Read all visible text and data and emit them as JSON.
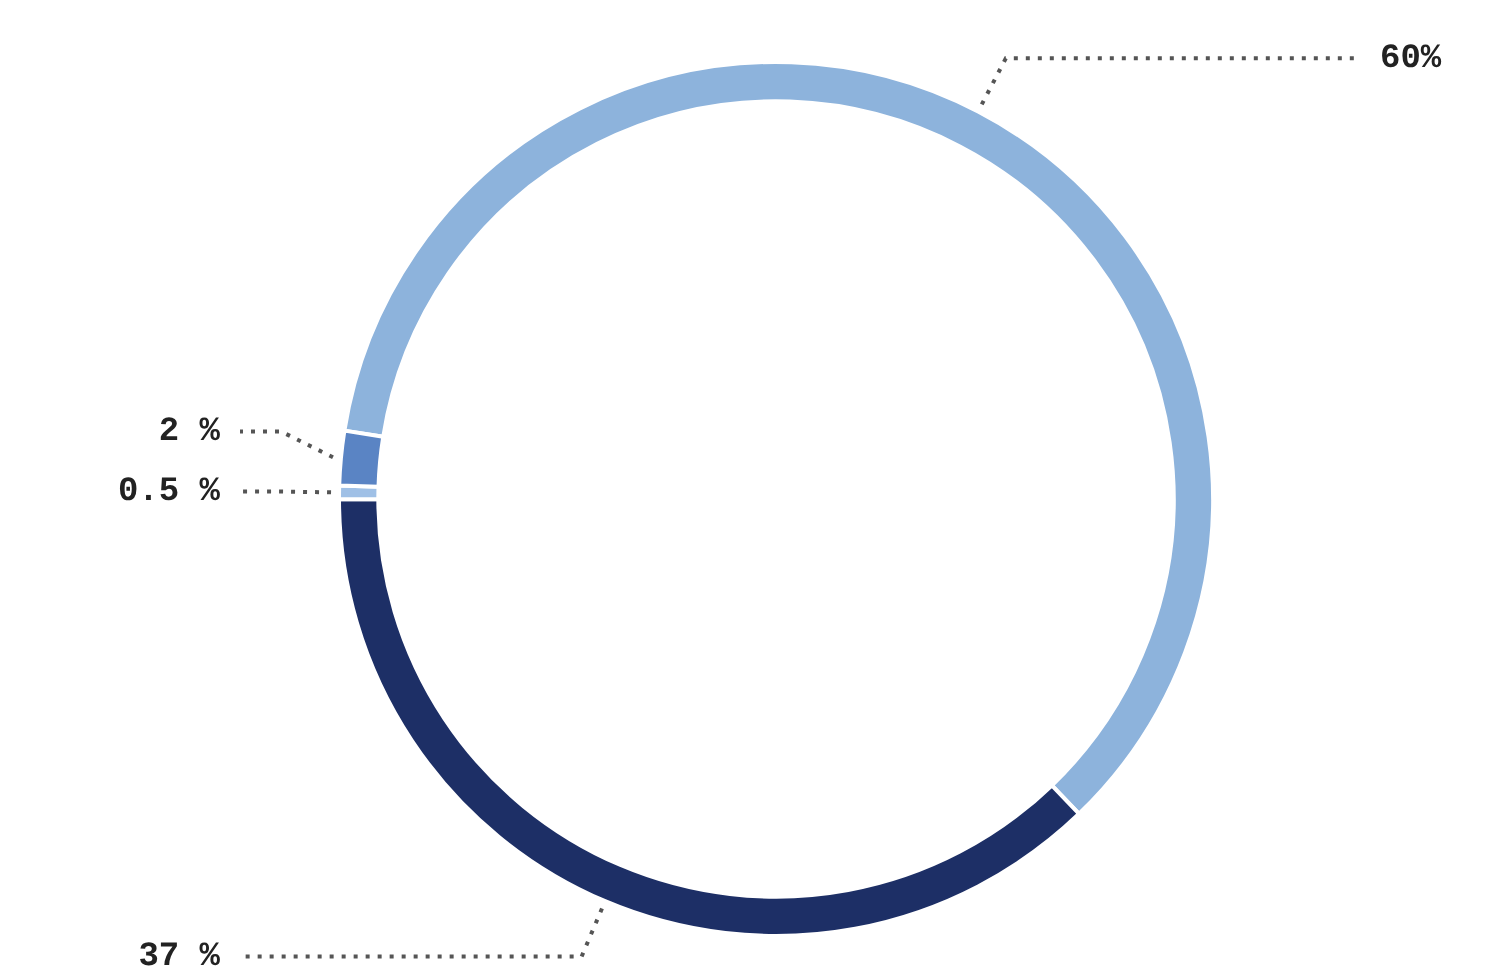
{
  "chart_data": {
    "type": "donut",
    "categories": [
      null,
      null,
      null,
      null
    ],
    "values": [
      60,
      37,
      0.5,
      2
    ],
    "colors": [
      "#8db3dc",
      "#1d2f66",
      "#9fc0e6",
      "#5a84c4"
    ],
    "value_labels": [
      "60%",
      "37 %",
      "0.5 %",
      "2 %"
    ],
    "legend": false
  }
}
